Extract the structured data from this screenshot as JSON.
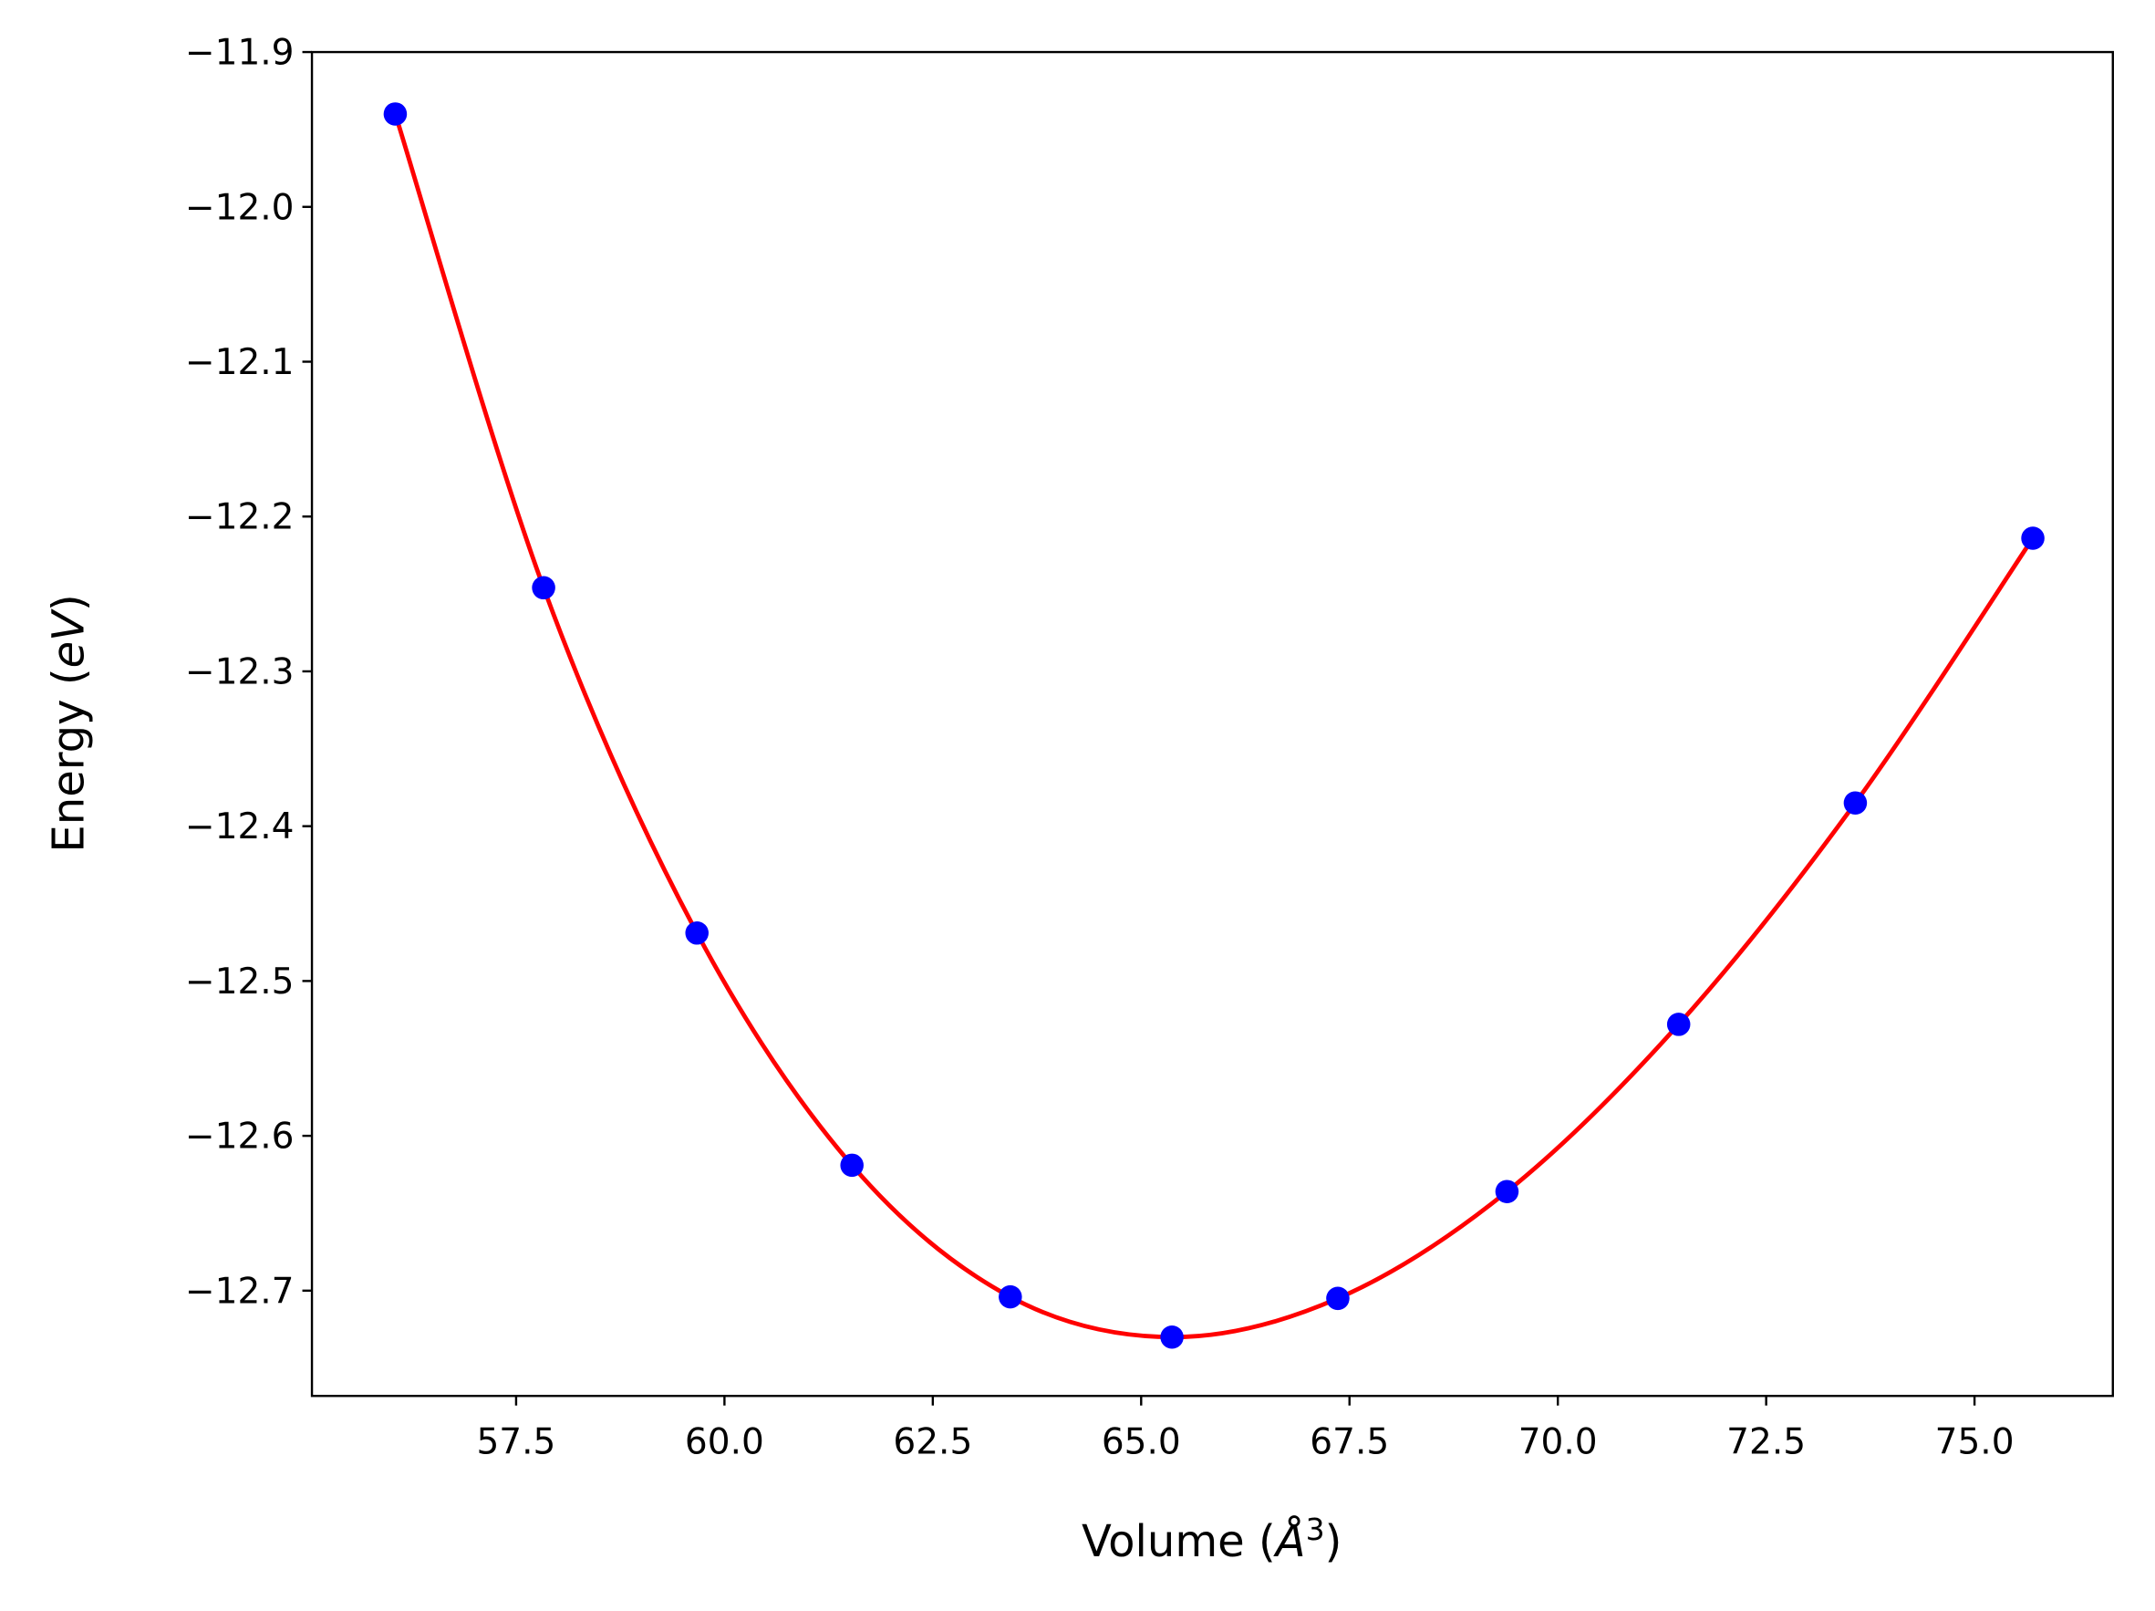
{
  "chart_data": {
    "type": "line",
    "title": "",
    "xlabel": "Volume (Å³)",
    "xlabel_main": "Volume (",
    "xlabel_unit": "Å",
    "xlabel_exp": "3",
    "xlabel_close": ")",
    "ylabel_main": "Energy (",
    "ylabel_unit": "eV",
    "ylabel_close": ")",
    "xlim": [
      55.05,
      76.66
    ],
    "ylim": [
      -12.768,
      -11.9
    ],
    "xticks": [
      57.5,
      60.0,
      62.5,
      65.0,
      67.5,
      70.0,
      72.5,
      75.0
    ],
    "xtick_labels": [
      "57.5",
      "60.0",
      "62.5",
      "65.0",
      "67.5",
      "70.0",
      "72.5",
      "75.0"
    ],
    "yticks": [
      -11.9,
      -12.0,
      -12.1,
      -12.2,
      -12.3,
      -12.4,
      -12.5,
      -12.6,
      -12.7
    ],
    "ytick_labels": [
      "−11.9",
      "−12.0",
      "−12.1",
      "−12.2",
      "−12.3",
      "−12.4",
      "−12.5",
      "−12.6",
      "−12.7"
    ],
    "grid": false,
    "series": [
      {
        "kind": "scatter",
        "color": "#0000ff",
        "x": [
          56.05,
          57.83,
          59.67,
          61.53,
          63.43,
          65.37,
          67.36,
          69.39,
          71.45,
          73.57,
          75.7
        ],
        "y": [
          -11.94,
          -12.246,
          -12.469,
          -12.619,
          -12.704,
          -12.73,
          -12.705,
          -12.636,
          -12.528,
          -12.385,
          -12.214
        ]
      },
      {
        "kind": "fit-line",
        "color": "#ff0000"
      }
    ]
  }
}
